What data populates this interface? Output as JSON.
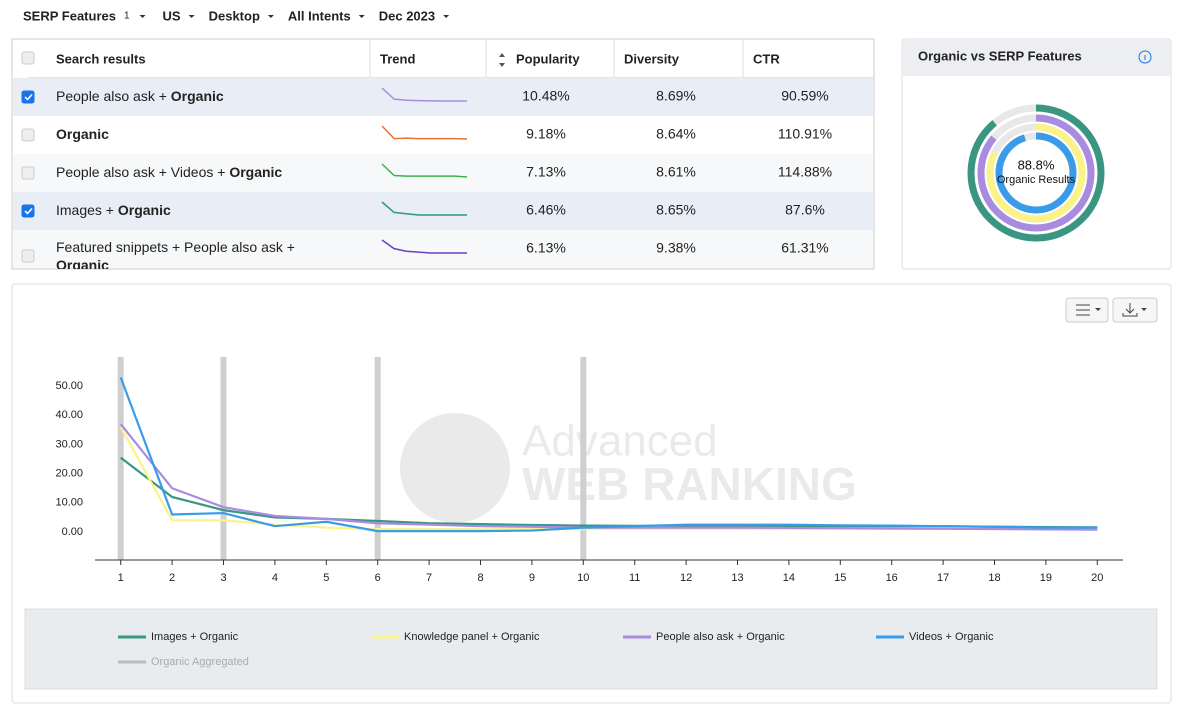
{
  "filters": [
    {
      "label": "SERP Features",
      "badge": 1
    },
    {
      "label": "US"
    },
    {
      "label": "Desktop"
    },
    {
      "label": "All Intents"
    },
    {
      "label": "Dec 2023"
    }
  ],
  "table": {
    "headers": [
      "Search results",
      "Trend",
      "Popularity",
      "Diversity",
      "CTR"
    ],
    "rows": [
      {
        "checked": true,
        "text": [
          "People also ask + ",
          "Organic"
        ],
        "trend_color": "#a98be0",
        "trend": [
          10,
          4,
          3.4,
          3.2,
          3.1,
          3,
          3,
          3
        ],
        "popularity": "10.48%",
        "diversity": "8.69%",
        "ctr": "90.59%"
      },
      {
        "checked": false,
        "text": [
          "Organic"
        ],
        "trend_color": "#e8743b",
        "trend": [
          9,
          3,
          3.2,
          3,
          3,
          3,
          3,
          2.8
        ],
        "popularity": "9.18%",
        "diversity": "8.64%",
        "ctr": "110.91%"
      },
      {
        "checked": false,
        "text": [
          "People also ask + Videos + ",
          "Organic"
        ],
        "trend_color": "#3cb44b",
        "trend": [
          7,
          3,
          2.8,
          2.8,
          2.8,
          2.8,
          2.8,
          2.5
        ],
        "popularity": "7.13%",
        "diversity": "8.61%",
        "ctr": "114.88%"
      },
      {
        "checked": true,
        "text": [
          "Images + ",
          "Organic"
        ],
        "trend_color": "#2e9a7f",
        "trend": [
          8,
          4,
          3.5,
          3,
          3,
          3,
          3,
          3
        ],
        "popularity": "6.46%",
        "diversity": "8.65%",
        "ctr": "87.6%"
      },
      {
        "checked": false,
        "text": [
          "Featured snippets + People also ask + ",
          "Organic"
        ],
        "trend_color": "#6a3fc0",
        "trend": [
          10,
          5,
          3.5,
          3,
          2.5,
          2.5,
          2.5,
          2.5
        ],
        "popularity": "6.13%",
        "diversity": "9.38%",
        "ctr": "61.31%"
      }
    ]
  },
  "donut": {
    "title": "Organic vs SERP Features",
    "center_value": "88.8%",
    "center_label": "Organic Results",
    "rings": [
      {
        "color": "#3a9682",
        "value": 89
      },
      {
        "color": "#a98be0",
        "value": 86
      },
      {
        "color": "#fbf38a",
        "value": 82
      },
      {
        "color": "#3a9be8",
        "value": 95
      }
    ]
  },
  "chart_data": {
    "type": "line",
    "x": [
      1,
      2,
      3,
      4,
      5,
      6,
      7,
      8,
      9,
      10,
      11,
      12,
      13,
      14,
      15,
      16,
      17,
      18,
      19,
      20
    ],
    "xlim": [
      0.5,
      20.5
    ],
    "ylim": [
      -9.6,
      60
    ],
    "yticks": [
      {
        "value": 0,
        "label": "0.00"
      },
      {
        "value": 10,
        "label": "10.00"
      },
      {
        "value": 20,
        "label": "20.00"
      },
      {
        "value": 30,
        "label": "30.00"
      },
      {
        "value": 40,
        "label": "40.00"
      },
      {
        "value": 50,
        "label": "50.00"
      }
    ],
    "highlight_x": [
      1,
      3,
      6,
      10
    ],
    "watermark": [
      "Advanced",
      "WEB RANKING"
    ],
    "series": [
      {
        "name": "Images + Organic",
        "color": "#3a9682",
        "values": [
          25.5,
          12,
          7.5,
          5,
          4.5,
          3.8,
          3,
          2.7,
          2.4,
          2.2,
          2.1,
          2,
          2,
          2,
          2,
          2,
          2,
          1.8,
          1.7,
          1.6
        ]
      },
      {
        "name": "Knowledge panel + Organic",
        "color": "#fbf38a",
        "values": [
          36,
          4,
          4,
          2.5,
          1.5,
          1,
          1,
          1,
          1,
          1,
          1,
          1,
          1,
          1,
          1,
          1,
          1,
          1,
          1,
          1
        ]
      },
      {
        "name": "People also ask + Organic",
        "color": "#a98be0",
        "values": [
          37,
          15,
          8.5,
          5.5,
          4.5,
          3,
          2.5,
          2,
          1.8,
          1.5,
          1.5,
          1.5,
          1.5,
          1.4,
          1.3,
          1.2,
          1.1,
          1,
          0.9,
          0.8
        ]
      },
      {
        "name": "Videos + Organic",
        "color": "#3a9be8",
        "values": [
          53,
          6,
          6.5,
          2,
          3.5,
          0.3,
          0.3,
          0.3,
          0.5,
          1.5,
          2,
          2.5,
          2.5,
          2.5,
          2.3,
          2.2,
          2,
          1.8,
          1.5,
          1.5
        ]
      },
      {
        "name": "Organic Aggregated",
        "color": "#bbbbbb",
        "hidden": true
      }
    ]
  }
}
